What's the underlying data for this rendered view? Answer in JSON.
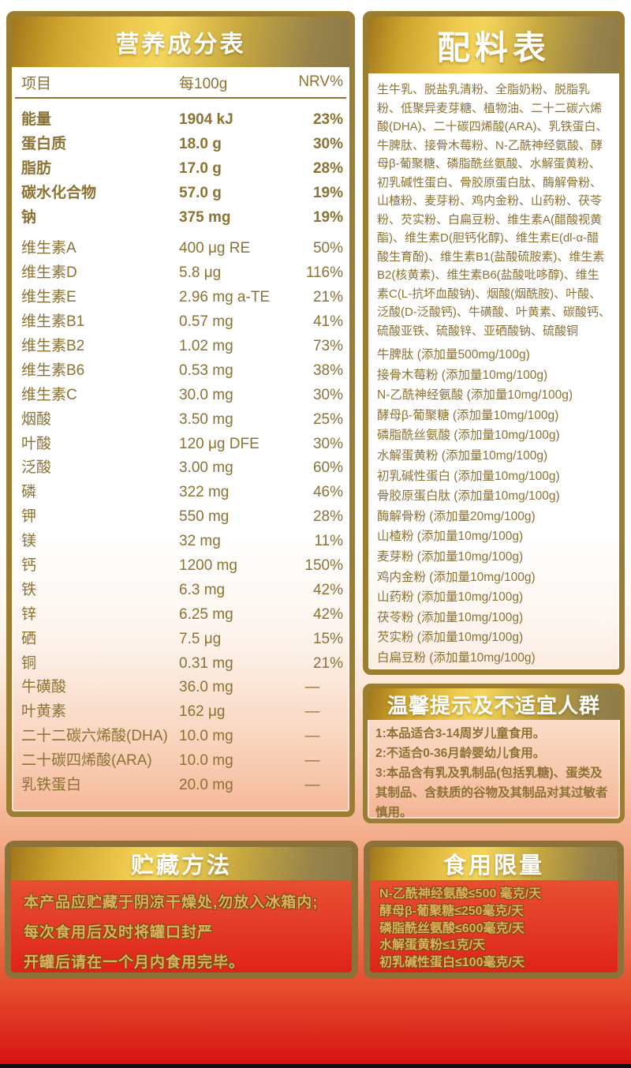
{
  "colors": {
    "gold_border": "#9c7e33",
    "bronze_text": "#8c7233",
    "header_gold": "#eec94e",
    "red_body": "#e4402a",
    "page_bottom_red": "#d61314",
    "gold_outline_text": "#d8b25d"
  },
  "nutrition": {
    "title": "营养成分表",
    "columns": {
      "item": "项目",
      "per": "每100g",
      "nrv": "NRV%"
    },
    "rows": [
      {
        "name": "能量",
        "value": "1904 kJ",
        "nrv": "23%",
        "bold": true
      },
      {
        "name": "蛋白质",
        "value": "18.0 g",
        "nrv": "30%",
        "bold": true
      },
      {
        "name": "脂肪",
        "value": "17.0 g",
        "nrv": "28%",
        "bold": true
      },
      {
        "name": "碳水化合物",
        "value": "57.0 g",
        "nrv": "19%",
        "bold": true
      },
      {
        "name": "钠",
        "value": "375 mg",
        "nrv": "19%",
        "bold": true,
        "gap_after": true
      },
      {
        "name": "维生素A",
        "value": "400 μg RE",
        "nrv": "50%"
      },
      {
        "name": "维生素D",
        "value": "5.8 μg",
        "nrv": "116%"
      },
      {
        "name": "维生素E",
        "value": "2.96 mg a-TE",
        "nrv": "21%"
      },
      {
        "name": "维生素B1",
        "value": "0.57 mg",
        "nrv": "41%"
      },
      {
        "name": "维生素B2",
        "value": "1.02 mg",
        "nrv": "73%"
      },
      {
        "name": "维生素B6",
        "value": "0.53 mg",
        "nrv": "38%"
      },
      {
        "name": "维生素C",
        "value": "30.0 mg",
        "nrv": "30%"
      },
      {
        "name": "烟酸",
        "value": "3.50 mg",
        "nrv": "25%"
      },
      {
        "name": "叶酸",
        "value": "120 μg DFE",
        "nrv": "30%"
      },
      {
        "name": "泛酸",
        "value": "3.00 mg",
        "nrv": "60%"
      },
      {
        "name": "磷",
        "value": "322 mg",
        "nrv": "46%"
      },
      {
        "name": "钾",
        "value": "550 mg",
        "nrv": "28%"
      },
      {
        "name": "镁",
        "value": "32 mg",
        "nrv": "11%"
      },
      {
        "name": "钙",
        "value": "1200 mg",
        "nrv": "150%"
      },
      {
        "name": "铁",
        "value": "6.3 mg",
        "nrv": "42%"
      },
      {
        "name": "锌",
        "value": "6.25 mg",
        "nrv": "42%"
      },
      {
        "name": "硒",
        "value": "7.5 μg",
        "nrv": "15%"
      },
      {
        "name": "铜",
        "value": "0.31 mg",
        "nrv": "21%"
      },
      {
        "name": "牛磺酸",
        "value": "36.0 mg",
        "nrv": "—"
      },
      {
        "name": "叶黄素",
        "value": "162 μg",
        "nrv": "—"
      },
      {
        "name": "二十二碳六烯酸(DHA)",
        "value": "10.0 mg",
        "nrv": "—"
      },
      {
        "name": "二十碳四烯酸(ARA)",
        "value": "10.0 mg",
        "nrv": "—"
      },
      {
        "name": "乳铁蛋白",
        "value": "20.0 mg",
        "nrv": "—"
      }
    ]
  },
  "ingredients": {
    "title": "配料表",
    "text": "生牛乳、脱盐乳清粉、全脂奶粉、脱脂乳粉、低聚异麦芽糖、植物油、二十二碳六烯酸(DHA)、二十碳四烯酸(ARA)、乳铁蛋白、牛脾肽、接骨木莓粉、N-乙酰神经氨酸、酵母β-葡聚糖、磷脂酰丝氨酸、水解蛋黄粉、初乳碱性蛋白、骨胶原蛋白肽、酶解骨粉、山楂粉、麦芽粉、鸡内金粉、山药粉、茯苓粉、芡实粉、白扁豆粉、维生素A(醋酸视黄酯)、维生素D(胆钙化醇)、维生素E(dl-α-醋酸生育酚)、维生素B1(盐酸硫胺素)、维生素B2(核黄素)、维生素B6(盐酸吡哆醇)、维生素C(L-抗坏血酸钠)、烟酸(烟酰胺)、叶酸、泛酸(D-泛酸钙)、牛磺酸、叶黄素、碳酸钙、硫酸亚铁、硫酸锌、亚硒酸钠、硫酸铜",
    "additives": [
      "牛脾肽 (添加量500mg/100g)",
      "接骨木莓粉 (添加量10mg/100g)",
      "N-乙酰神经氨酸 (添加量10mg/100g)",
      "酵母β-葡聚糖 (添加量10mg/100g)",
      "磷脂酰丝氨酸 (添加量10mg/100g)",
      "水解蛋黄粉 (添加量10mg/100g)",
      "初乳碱性蛋白 (添加量10mg/100g)",
      "骨胶原蛋白肽 (添加量10mg/100g)",
      "酶解骨粉 (添加量20mg/100g)",
      "山楂粉 (添加量10mg/100g)",
      "麦芽粉 (添加量10mg/100g)",
      "鸡内金粉 (添加量10mg/100g)",
      "山药粉 (添加量10mg/100g)",
      "茯苓粉 (添加量10mg/100g)",
      "芡实粉 (添加量10mg/100g)",
      "白扁豆粉 (添加量10mg/100g)"
    ]
  },
  "tips": {
    "title": "温馨提示及不适宜人群",
    "lines": [
      "1:本品适合3-14周岁儿童食用。",
      "2:不适合0-36月龄婴幼儿食用。",
      "3:本品含有乳及乳制品(包括乳糖)、蛋类及其制品、含麸质的谷物及其制品对其过敏者慎用。"
    ]
  },
  "storage": {
    "title": "贮藏方法",
    "lines": [
      "本产品应贮藏于阴凉干燥处,勿放入冰箱内;",
      "每次食用后及时将罐口封严",
      "开罐后请在一个月内食用完毕。"
    ]
  },
  "limits": {
    "title": "食用限量",
    "lines": [
      "N-乙酰神经氨酸≤500 毫克/天",
      "酵母β-葡聚糖≤250毫克/天",
      "磷脂酰丝氨酸≤600毫克/天",
      "水解蛋黄粉≤1克/天",
      "初乳碱性蛋白≤100毫克/天"
    ]
  }
}
